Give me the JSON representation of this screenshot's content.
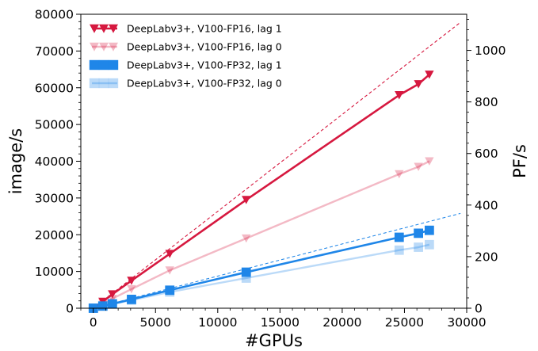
{
  "chart_data": {
    "type": "line",
    "xlabel": "#GPUs",
    "ylabel": "image/s",
    "y2label": "PF/s",
    "xlim": [
      -1000,
      30000
    ],
    "ylim": [
      0,
      80000
    ],
    "y2lim": [
      0,
      1140
    ],
    "xticks": [
      0,
      5000,
      10000,
      15000,
      20000,
      25000,
      30000
    ],
    "yticks": [
      0,
      10000,
      20000,
      30000,
      40000,
      50000,
      60000,
      70000,
      80000
    ],
    "y2ticks": [
      0,
      200,
      400,
      600,
      800,
      1000
    ],
    "legend_position": "top-left",
    "grid": false,
    "series": [
      {
        "name": "DeepLabv3+, V100-FP16, lag 1",
        "color": "#d6183f",
        "marker": "triangle-down",
        "opacity": 1.0,
        "line_width": 2.6,
        "x": [
          6,
          768,
          1536,
          3072,
          6144,
          12288,
          24576,
          26124,
          27000
        ],
        "y": [
          0,
          1800,
          3800,
          7500,
          14800,
          29500,
          58000,
          61000,
          63600
        ]
      },
      {
        "name": "DeepLabv3+, V100-FP16, lag 0",
        "color": "#d6183f",
        "marker": "triangle-down",
        "opacity": 0.3,
        "line_width": 2.4,
        "x": [
          6,
          768,
          1536,
          3072,
          6144,
          12288,
          24576,
          26124,
          27000
        ],
        "y": [
          0,
          1300,
          2600,
          5200,
          10300,
          19000,
          36500,
          38500,
          40000
        ]
      },
      {
        "name": "DeepLabv3+, V100-FP32, lag 1",
        "color": "#1f86e8",
        "marker": "square",
        "opacity": 1.0,
        "line_width": 2.6,
        "x": [
          6,
          768,
          1536,
          3072,
          6144,
          12288,
          24576,
          26124,
          27000
        ],
        "y": [
          0,
          600,
          1200,
          2400,
          4900,
          9800,
          19300,
          20400,
          21200
        ]
      },
      {
        "name": "DeepLabv3+, V100-FP32, lag 0",
        "color": "#1f86e8",
        "marker": "square",
        "opacity": 0.3,
        "line_width": 2.4,
        "x": [
          6,
          768,
          1536,
          3072,
          6144,
          12288,
          24576,
          26124,
          27000
        ],
        "y": [
          0,
          550,
          1100,
          2200,
          4400,
          8200,
          15800,
          16600,
          17300
        ]
      }
    ],
    "reference_lines": [
      {
        "color": "#d6183f",
        "style": "dashed",
        "x": [
          6,
          29500
        ],
        "y": [
          0,
          77800
        ]
      },
      {
        "color": "#1f86e8",
        "style": "dashed",
        "x": [
          6,
          29500
        ],
        "y": [
          0,
          25800
        ]
      }
    ]
  }
}
